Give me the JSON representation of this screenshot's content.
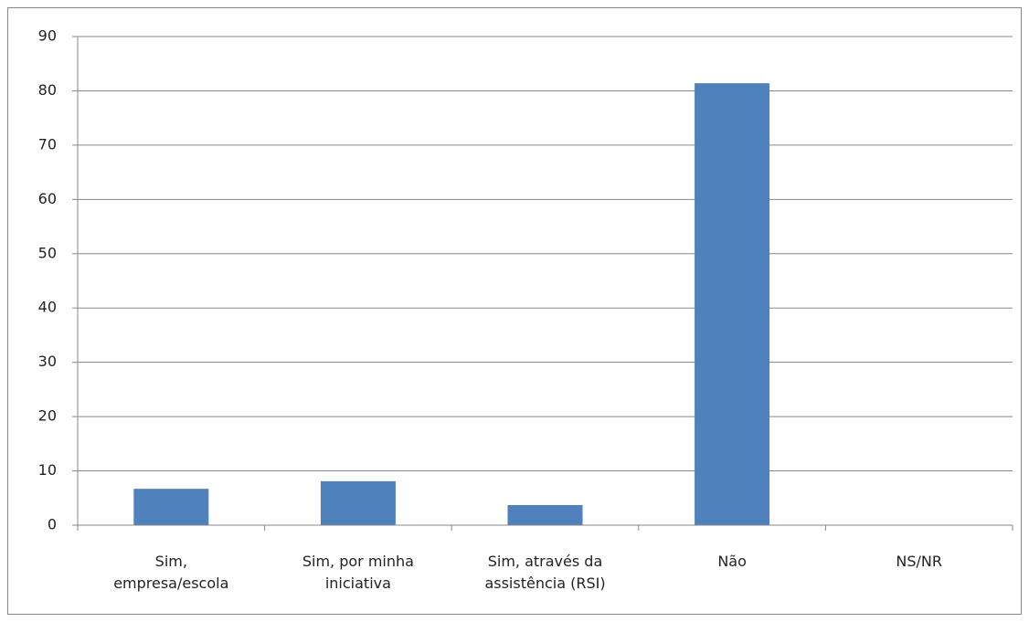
{
  "chart_data": {
    "type": "bar",
    "categories": [
      "Sim, empresa/escola",
      "Sim, por minha iniciativa",
      "Sim, através da assistência (RSI)",
      "Não",
      "NS/NR"
    ],
    "values": [
      6.7,
      8.1,
      3.7,
      81.4,
      0
    ],
    "color": "#4f81bd",
    "ylim": [
      0,
      90
    ],
    "yticks": [
      0,
      10,
      20,
      30,
      40,
      50,
      60,
      70,
      80,
      90
    ],
    "grid": true
  }
}
